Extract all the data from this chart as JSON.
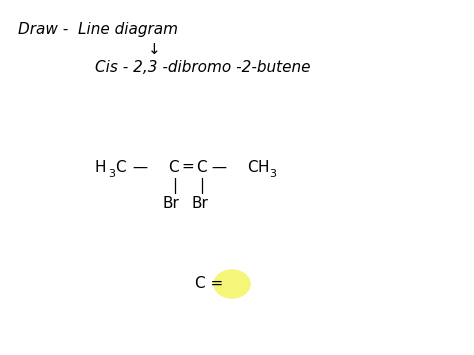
{
  "bg_color": "#ffffff",
  "title_line1": "Draw -  Line diagram",
  "arrow_text": "↓",
  "title_line2": "Cis - 2,3 -dibromo -2-butene",
  "bottom_text": "C =",
  "highlight_color": "#f5f578",
  "font_family": "DejaVu Sans",
  "font_size_main": 11,
  "font_size_sub": 8
}
